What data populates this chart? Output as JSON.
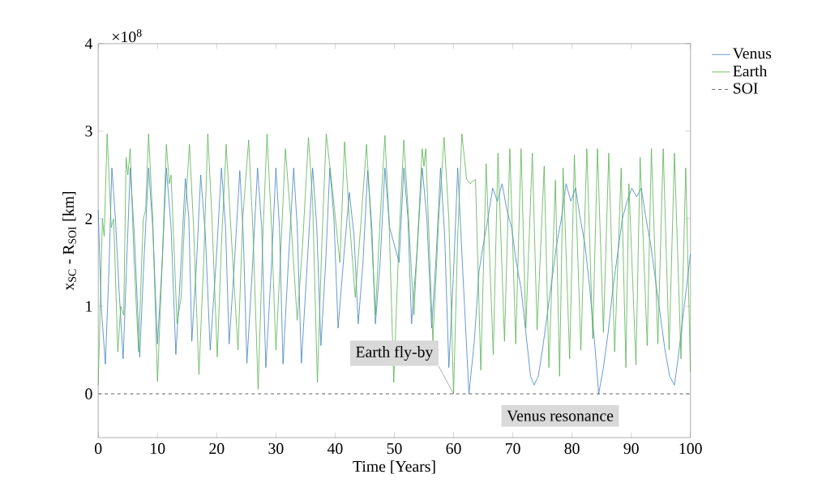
{
  "chart_data": {
    "type": "line",
    "xlabel": "Time [Years]",
    "ylabel": "x$_{SC}$ - R$_{SOI}$ [km]",
    "xlim": [
      0,
      100
    ],
    "xticks": [
      0,
      10,
      20,
      30,
      40,
      50,
      60,
      70,
      80,
      90,
      100
    ],
    "ylim": [
      -0.5,
      4
    ],
    "yticks": [
      0,
      1,
      2,
      3,
      4
    ],
    "legend": "top right",
    "line_style": "solid",
    "marker": "none",
    "ref_lines": [
      {
        "axis": "y",
        "value": 0,
        "label": "SOI",
        "color": "#333333",
        "line_style": "dashed"
      }
    ],
    "annotations": [
      "×10$^{8}$",
      {
        "text": "Earth fly-by",
        "x": 60,
        "y": 0
      },
      "Venus resonance"
    ],
    "series": [
      {
        "name": "Venus",
        "color": "#3f7fc4",
        "x": [
          0,
          0.5,
          1.2,
          1.8,
          2.3,
          2.9,
          3.5,
          4.2,
          4.8,
          5.4,
          6.1,
          7.0,
          7.7,
          8.5,
          9.2,
          10.0,
          10.8,
          11.5,
          12.3,
          13.1,
          13.9,
          14.7,
          15.3,
          15.8,
          16.6,
          17.3,
          18.1,
          18.9,
          19.9,
          20.8,
          21.5,
          22.1,
          23.0,
          23.9,
          24.5,
          25.1,
          26.0,
          26.9,
          27.6,
          28.3,
          29.2,
          30.0,
          30.6,
          31.2,
          32.1,
          33.0,
          33.6,
          34.3,
          35.3,
          36.2,
          36.9,
          37.6,
          38.4,
          39.1,
          39.8,
          40.5,
          41.5,
          42.4,
          43.2,
          43.9,
          44.7,
          45.5,
          46.2,
          46.8,
          47.6,
          48.4,
          49.2,
          49.9,
          50.8,
          51.6,
          52.3,
          52.9,
          53.8,
          54.7,
          55.5,
          56.3,
          57.0,
          57.8,
          58.5,
          59.2,
          60.0,
          60.7,
          61.7,
          62.6,
          63.5,
          64.3,
          65.0,
          65.8,
          66.6,
          67.4,
          68.2,
          69.0,
          69.8,
          70.6,
          71.4,
          72.2,
          73.0,
          73.6,
          74.3,
          75.0,
          75.8,
          76.6,
          77.4,
          78.2,
          79.0,
          79.8,
          80.6,
          81.4,
          82.2,
          83.0,
          83.8,
          84.5,
          85.3,
          86.1,
          86.9,
          87.7,
          88.5,
          89.3,
          90.1,
          90.9,
          91.7,
          92.5,
          93.3,
          94.1,
          94.9,
          95.7,
          96.5,
          97.3,
          97.9,
          98.6,
          99.3,
          100
        ],
        "values": [
          2.1,
          1.0,
          0.34,
          1.4,
          2.58,
          2.0,
          1.2,
          0.4,
          1.5,
          2.58,
          1.8,
          0.42,
          1.5,
          2.58,
          1.9,
          0.57,
          1.5,
          2.58,
          1.9,
          0.45,
          1.4,
          2.46,
          2.0,
          0.6,
          1.5,
          2.5,
          1.8,
          0.5,
          1.5,
          2.58,
          1.9,
          0.57,
          1.5,
          2.55,
          1.8,
          0.35,
          1.4,
          2.58,
          1.9,
          0.3,
          1.4,
          2.58,
          1.9,
          0.34,
          1.5,
          2.58,
          1.9,
          0.35,
          1.5,
          2.58,
          1.9,
          0.55,
          1.5,
          2.58,
          2.0,
          0.75,
          1.6,
          2.3,
          1.8,
          0.8,
          1.5,
          2.55,
          1.9,
          0.8,
          1.5,
          2.58,
          1.9,
          null,
          1.5,
          2.58,
          2.0,
          0.8,
          1.6,
          2.58,
          2.0,
          0.75,
          1.5,
          2.58,
          1.8,
          0.3,
          1.4,
          2.58,
          1.2,
          0,
          0.6,
          1.4,
          1.7,
          2.0,
          2.35,
          2.2,
          2.4,
          2.1,
          1.9,
          1.5,
          1.2,
          0.7,
          0.2,
          0.1,
          0.2,
          0.5,
          0.9,
          1.3,
          1.7,
          2.0,
          2.4,
          2.2,
          2.35,
          2.0,
          1.7,
          1.2,
          0.6,
          0,
          0.3,
          0.7,
          1.2,
          1.6,
          2.0,
          2.2,
          2.35,
          2.25,
          2.35,
          2.0,
          1.7,
          1.3,
          0.9,
          0.5,
          0.2,
          0.1,
          0.4,
          0.8,
          1.2,
          1.6
        ]
      },
      {
        "name": "Earth",
        "color": "#55b04f",
        "x": [
          0,
          0.7,
          1.0,
          1.5,
          2.2,
          2.6,
          3.3,
          3.8,
          4.3,
          4.7,
          5.0,
          5.4,
          6.0,
          6.8,
          7.6,
          8.0,
          8.5,
          9.2,
          10.0,
          10.8,
          11.5,
          12.0,
          12.3,
          13.3,
          14.0,
          14.6,
          15.4,
          16.1,
          17.0,
          17.8,
          18.5,
          19.2,
          20.1,
          20.8,
          21.6,
          22.3,
          23.6,
          24.4,
          25.4,
          26.1,
          27.0,
          27.8,
          28.5,
          29.2,
          30.0,
          30.8,
          31.6,
          32.5,
          33.6,
          34.5,
          35.5,
          36.2,
          37.0,
          37.8,
          38.5,
          39.6,
          40.8,
          41.6,
          42.4,
          43.4,
          44.4,
          45.3,
          46.0,
          46.8,
          47.6,
          48.4,
          49.1,
          49.9,
          50.8,
          51.6,
          52.4,
          53.3,
          54.7,
          55.0,
          55.3,
          56.0,
          56.5,
          57.5,
          58.4,
          59.2,
          60.0,
          60.7,
          61.4,
          62.2,
          62.8,
          63.7,
          64.6,
          65.5,
          66.7,
          67.5,
          68.6,
          69.5,
          70.5,
          71.4,
          72.2,
          73.3,
          74.1,
          75.3,
          76.1,
          77.2,
          77.9,
          78.5,
          79.6,
          80.4,
          81.5,
          82.5,
          83.5,
          84.3,
          85.3,
          86.2,
          87.2,
          88.3,
          89.1,
          89.6,
          90.8,
          91.5,
          92.7,
          93.4,
          94.5,
          95.4,
          96.4,
          97.3,
          98.4,
          99.2,
          100
        ],
        "values": [
          0.1,
          2.0,
          1.8,
          2.97,
          1.9,
          2.0,
          0.48,
          1.0,
          0.9,
          2.7,
          2.5,
          2.8,
          1.6,
          0.48,
          2.0,
          2.1,
          2.97,
          2.0,
          0.14,
          1.5,
          2.85,
          2.4,
          2.5,
          0.8,
          1.1,
          2.0,
          2.85,
          1.9,
          0.22,
          1.5,
          2.97,
          2.0,
          0.42,
          1.7,
          2.85,
          2.0,
          0.5,
          2.0,
          2.9,
          1.9,
          0.05,
          1.8,
          2.97,
          2.0,
          0.5,
          1.6,
          2.8,
          2.0,
          0.84,
          1.7,
          2.93,
          2.2,
          0.13,
          1.8,
          2.97,
          2.3,
          1.5,
          2.88,
          2.0,
          1.1,
          2.0,
          2.85,
          2.0,
          0.9,
          2.0,
          2.95,
          2.0,
          0.13,
          1.8,
          2.9,
          2.0,
          0.9,
          2.8,
          2.6,
          2.8,
          1.5,
          0.6,
          2.0,
          2.93,
          2.0,
          0,
          1.8,
          2.97,
          2.45,
          2.4,
          2.45,
          0.27,
          2.63,
          0.45,
          2.75,
          0.6,
          2.8,
          0.57,
          2.8,
          0.75,
          2.75,
          0.73,
          2.6,
          0.3,
          2.44,
          0.2,
          2.58,
          0.4,
          2.73,
          0.5,
          2.8,
          0.63,
          2.8,
          0.7,
          2.75,
          0.48,
          2.58,
          0.3,
          2.4,
          0.33,
          2.7,
          0.55,
          2.8,
          0.57,
          2.8,
          0.5,
          2.75,
          0.4,
          2.58,
          0.25
        ]
      }
    ]
  }
}
